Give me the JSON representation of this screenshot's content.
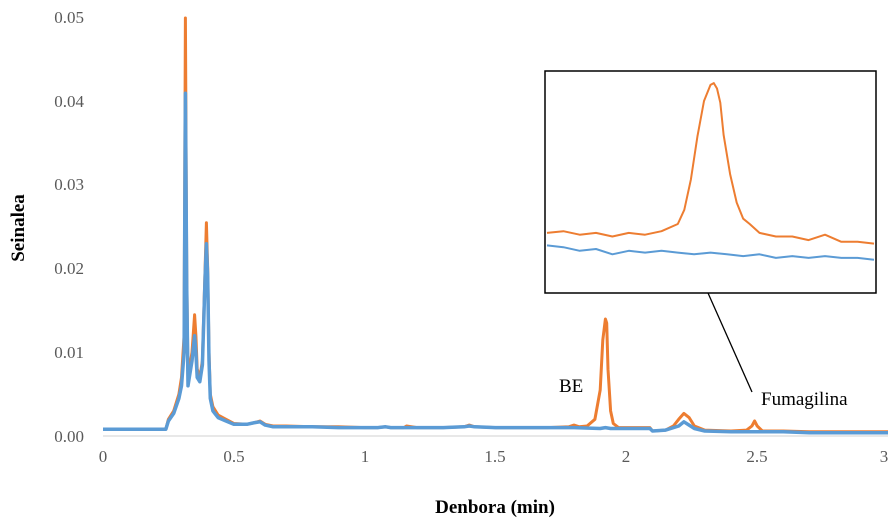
{
  "chart_data": {
    "type": "line",
    "title": "",
    "xlabel": "Denbora (min)",
    "ylabel": "Seinalea",
    "xlim": [
      0,
      3
    ],
    "ylim": [
      0,
      0.05
    ],
    "x_ticks": [
      "0",
      "0.5",
      "1",
      "1.5",
      "2",
      "2.5",
      "3"
    ],
    "y_ticks": [
      "0.00",
      "0.01",
      "0.02",
      "0.03",
      "0.04",
      "0.05"
    ],
    "grid": false,
    "legend": "none",
    "series": [
      {
        "color": "#ED7D31",
        "x": [
          0,
          0.24,
          0.25,
          0.27,
          0.29,
          0.3,
          0.31,
          0.315,
          0.32,
          0.325,
          0.33,
          0.34,
          0.35,
          0.355,
          0.36,
          0.37,
          0.38,
          0.39,
          0.395,
          0.4,
          0.405,
          0.41,
          0.42,
          0.44,
          0.47,
          0.5,
          0.55,
          0.58,
          0.6,
          0.62,
          0.65,
          0.7,
          0.8,
          0.9,
          1.0,
          1.05,
          1.08,
          1.1,
          1.15,
          1.16,
          1.2,
          1.3,
          1.38,
          1.4,
          1.42,
          1.5,
          1.6,
          1.7,
          1.78,
          1.8,
          1.82,
          1.85,
          1.88,
          1.9,
          1.91,
          1.92,
          1.925,
          1.93,
          1.94,
          1.95,
          1.97,
          2.0,
          2.05,
          2.09,
          2.1,
          2.15,
          2.18,
          2.2,
          2.22,
          2.24,
          2.26,
          2.3,
          2.4,
          2.46,
          2.48,
          2.49,
          2.5,
          2.52,
          2.6,
          2.7,
          2.8,
          2.9,
          3.0
        ],
        "values": [
          0.0008,
          0.0008,
          0.002,
          0.003,
          0.005,
          0.007,
          0.012,
          0.05,
          0.02,
          0.007,
          0.008,
          0.01,
          0.0145,
          0.012,
          0.008,
          0.007,
          0.009,
          0.02,
          0.0255,
          0.02,
          0.01,
          0.005,
          0.0035,
          0.0025,
          0.002,
          0.0015,
          0.0014,
          0.0016,
          0.0018,
          0.0014,
          0.0012,
          0.0012,
          0.0011,
          0.0011,
          0.001,
          0.001,
          0.0011,
          0.001,
          0.001,
          0.0012,
          0.001,
          0.001,
          0.0011,
          0.0013,
          0.0011,
          0.001,
          0.001,
          0.001,
          0.0011,
          0.0013,
          0.0011,
          0.0012,
          0.002,
          0.0055,
          0.0115,
          0.014,
          0.0135,
          0.008,
          0.003,
          0.0015,
          0.001,
          0.001,
          0.001,
          0.001,
          0.0006,
          0.0007,
          0.0012,
          0.002,
          0.0027,
          0.0022,
          0.0012,
          0.0007,
          0.0006,
          0.0007,
          0.0012,
          0.0018,
          0.0012,
          0.0006,
          0.0006,
          0.0005,
          0.0005,
          0.0005,
          0.0005
        ]
      },
      {
        "color": "#5B9BD5",
        "x": [
          0,
          0.24,
          0.25,
          0.27,
          0.29,
          0.3,
          0.31,
          0.315,
          0.32,
          0.325,
          0.33,
          0.34,
          0.35,
          0.355,
          0.36,
          0.37,
          0.38,
          0.39,
          0.395,
          0.4,
          0.405,
          0.41,
          0.42,
          0.44,
          0.47,
          0.5,
          0.55,
          0.58,
          0.6,
          0.62,
          0.65,
          0.7,
          0.8,
          0.9,
          1.0,
          1.05,
          1.08,
          1.1,
          1.2,
          1.3,
          1.38,
          1.4,
          1.42,
          1.5,
          1.6,
          1.7,
          1.8,
          1.9,
          1.92,
          1.94,
          2.0,
          2.05,
          2.09,
          2.1,
          2.15,
          2.2,
          2.22,
          2.24,
          2.26,
          2.3,
          2.4,
          2.5,
          2.6,
          2.7,
          2.8,
          2.9,
          3.0
        ],
        "values": [
          0.0008,
          0.0008,
          0.0018,
          0.0027,
          0.0045,
          0.006,
          0.01,
          0.041,
          0.018,
          0.006,
          0.007,
          0.009,
          0.012,
          0.01,
          0.007,
          0.0065,
          0.0085,
          0.019,
          0.023,
          0.019,
          0.009,
          0.0045,
          0.003,
          0.0022,
          0.0018,
          0.0014,
          0.0014,
          0.0016,
          0.0017,
          0.0013,
          0.0011,
          0.0011,
          0.0011,
          0.001,
          0.001,
          0.001,
          0.0011,
          0.001,
          0.001,
          0.001,
          0.0011,
          0.0012,
          0.0011,
          0.001,
          0.001,
          0.001,
          0.001,
          0.0009,
          0.001,
          0.0009,
          0.0009,
          0.0009,
          0.0009,
          0.0006,
          0.0007,
          0.0012,
          0.0017,
          0.0013,
          0.0009,
          0.0006,
          0.0005,
          0.0005,
          0.0005,
          0.0004,
          0.0004,
          0.0004,
          0.0004
        ]
      }
    ],
    "annotations": [
      "BE",
      "Fumagilina"
    ],
    "inset": {
      "series": [
        {
          "color": "#ED7D31",
          "x": [
            0,
            0.05,
            0.1,
            0.15,
            0.2,
            0.25,
            0.3,
            0.35,
            0.4,
            0.42,
            0.44,
            0.46,
            0.48,
            0.5,
            0.51,
            0.52,
            0.53,
            0.54,
            0.56,
            0.58,
            0.6,
            0.62,
            0.65,
            0.7,
            0.75,
            0.8,
            0.85,
            0.9,
            0.95,
            1.0
          ],
          "values": [
            0.12,
            0.13,
            0.11,
            0.12,
            0.1,
            0.12,
            0.11,
            0.13,
            0.17,
            0.25,
            0.42,
            0.66,
            0.86,
            0.95,
            0.96,
            0.93,
            0.85,
            0.67,
            0.45,
            0.29,
            0.2,
            0.17,
            0.12,
            0.1,
            0.1,
            0.08,
            0.11,
            0.07,
            0.07,
            0.06
          ]
        },
        {
          "color": "#5B9BD5",
          "x": [
            0,
            0.05,
            0.1,
            0.15,
            0.2,
            0.25,
            0.3,
            0.35,
            0.4,
            0.45,
            0.5,
            0.55,
            0.6,
            0.65,
            0.7,
            0.75,
            0.8,
            0.85,
            0.9,
            0.95,
            1.0
          ],
          "values": [
            0.05,
            0.04,
            0.02,
            0.03,
            0.0,
            0.02,
            0.01,
            0.02,
            0.01,
            0.0,
            0.01,
            0.0,
            -0.01,
            0.0,
            -0.02,
            -0.01,
            -0.02,
            -0.01,
            -0.02,
            -0.02,
            -0.03
          ]
        }
      ]
    }
  }
}
